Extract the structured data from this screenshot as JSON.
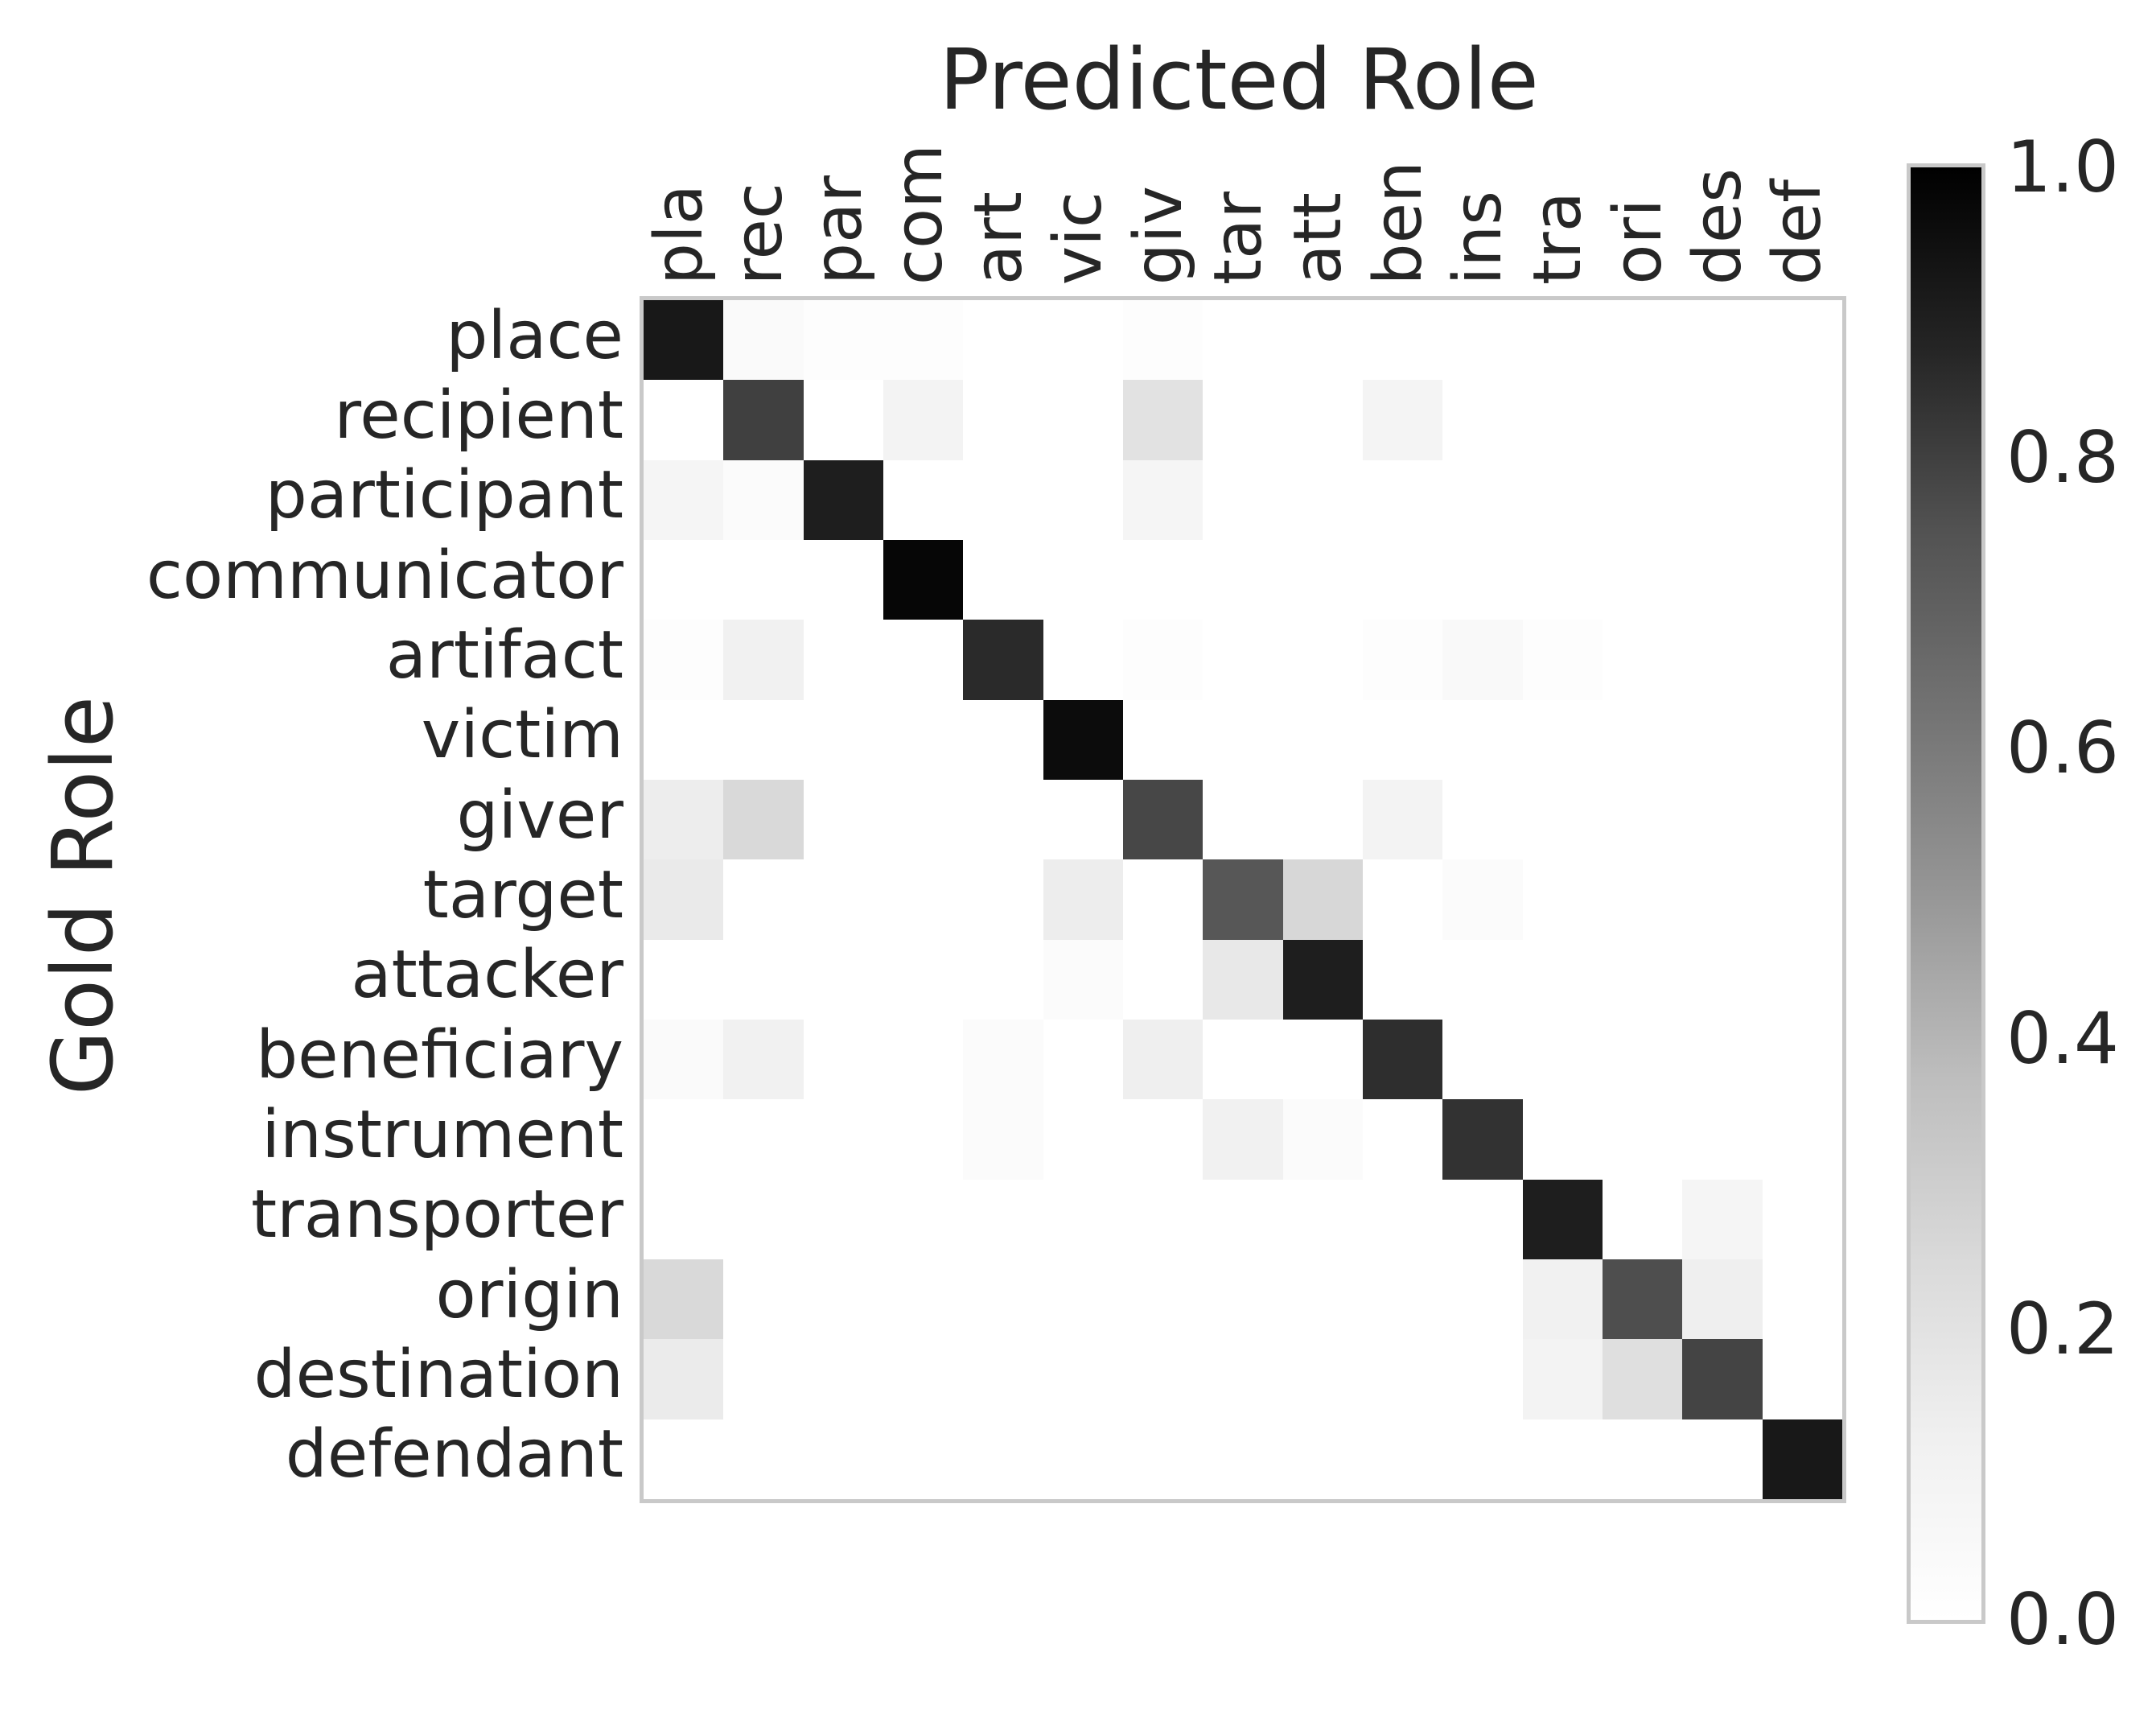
{
  "figure": {
    "kind": "confusion-matrix-heatmap"
  },
  "chart_data": {
    "type": "heatmap",
    "title": "Predicted Role",
    "xlabel": "Predicted Role",
    "ylabel": "Gold Role",
    "xlabel_position": "top",
    "colormap": "Greys",
    "value_range": [
      0.0,
      1.0
    ],
    "grid": false,
    "rows": [
      "place",
      "recipient",
      "participant",
      "communicator",
      "artifact",
      "victim",
      "giver",
      "target",
      "attacker",
      "beneficiary",
      "instrument",
      "transporter",
      "origin",
      "destination",
      "defendant"
    ],
    "cols": [
      "pla",
      "rec",
      "par",
      "com",
      "art",
      "vic",
      "giv",
      "tar",
      "att",
      "ben",
      "ins",
      "tra",
      "ori",
      "des",
      "def"
    ],
    "matrix": [
      [
        0.92,
        0.04,
        0.02,
        0.02,
        0,
        0,
        0.02,
        0,
        0,
        0,
        0,
        0,
        0,
        0,
        0
      ],
      [
        0,
        0.8,
        0,
        0.1,
        0,
        0,
        0.2,
        0,
        0,
        0.09,
        0,
        0,
        0,
        0,
        0
      ],
      [
        0.08,
        0.03,
        0.9,
        0,
        0,
        0,
        0.08,
        0,
        0,
        0,
        0,
        0,
        0,
        0,
        0
      ],
      [
        0,
        0,
        0,
        0.98,
        0,
        0,
        0,
        0,
        0,
        0,
        0,
        0,
        0,
        0,
        0
      ],
      [
        0.02,
        0.12,
        0,
        0,
        0.86,
        0,
        0.02,
        0,
        0,
        0.02,
        0.05,
        0.02,
        0,
        0,
        0
      ],
      [
        0,
        0,
        0,
        0,
        0,
        0.96,
        0,
        0,
        0,
        0,
        0,
        0,
        0,
        0,
        0
      ],
      [
        0.14,
        0.25,
        0,
        0,
        0,
        0,
        0.78,
        0,
        0,
        0.1,
        0,
        0,
        0,
        0,
        0
      ],
      [
        0.16,
        0,
        0,
        0,
        0,
        0.14,
        0,
        0.73,
        0.26,
        0,
        0.03,
        0,
        0,
        0,
        0
      ],
      [
        0,
        0,
        0,
        0,
        0,
        0.03,
        0,
        0.17,
        0.9,
        0,
        0,
        0,
        0,
        0,
        0
      ],
      [
        0.04,
        0.12,
        0,
        0,
        0.03,
        0,
        0.13,
        0,
        0,
        0.85,
        0,
        0,
        0,
        0,
        0
      ],
      [
        0,
        0,
        0,
        0,
        0.03,
        0,
        0,
        0.12,
        0.03,
        0,
        0.84,
        0,
        0,
        0,
        0
      ],
      [
        0,
        0,
        0,
        0,
        0,
        0,
        0,
        0,
        0,
        0,
        0,
        0.9,
        0,
        0.08,
        0
      ],
      [
        0.25,
        0,
        0,
        0,
        0,
        0,
        0,
        0,
        0,
        0,
        0,
        0.12,
        0.76,
        0.13,
        0
      ],
      [
        0.15,
        0,
        0,
        0,
        0,
        0,
        0,
        0,
        0,
        0,
        0,
        0.1,
        0.22,
        0.79,
        0
      ],
      [
        0,
        0,
        0,
        0,
        0,
        0,
        0,
        0,
        0,
        0,
        0,
        0,
        0,
        0,
        0.92
      ]
    ],
    "legend_position": "right-colorbar",
    "colorbar_ticks": [
      "1.0",
      "0.8",
      "0.6",
      "0.4",
      "0.2",
      "0.0"
    ],
    "colors": {
      "text": "#262626",
      "frame_border": "#c9c9c9",
      "background": "#ffffff",
      "colormap_high": "#000000",
      "colormap_low": "#ffffff"
    }
  }
}
